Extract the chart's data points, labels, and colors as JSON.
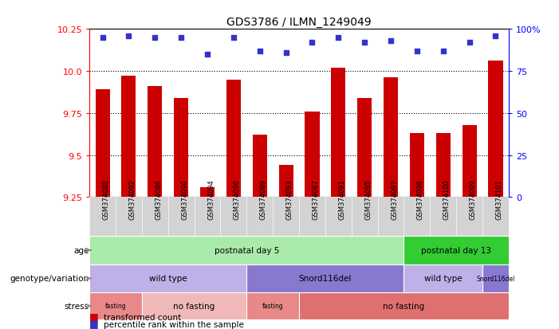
{
  "title": "GDS3786 / ILMN_1249049",
  "samples": [
    "GSM374088",
    "GSM374092",
    "GSM374086",
    "GSM374090",
    "GSM374094",
    "GSM374096",
    "GSM374089",
    "GSM374093",
    "GSM374087",
    "GSM374091",
    "GSM374095",
    "GSM374097",
    "GSM374098",
    "GSM374100",
    "GSM374099",
    "GSM374101"
  ],
  "bar_values": [
    9.89,
    9.97,
    9.91,
    9.84,
    9.31,
    9.95,
    9.62,
    9.44,
    9.76,
    10.02,
    9.84,
    9.96,
    9.63,
    9.63,
    9.68,
    10.06
  ],
  "dot_values": [
    95,
    96,
    95,
    95,
    85,
    95,
    87,
    86,
    92,
    95,
    92,
    93,
    87,
    87,
    92,
    96
  ],
  "ylim": [
    9.25,
    10.25
  ],
  "yticks_left": [
    9.25,
    9.5,
    9.75,
    10.0,
    10.25
  ],
  "yticks_right": [
    0,
    25,
    50,
    75,
    100
  ],
  "yticks_right_labels": [
    "0",
    "25",
    "50",
    "75",
    "100%"
  ],
  "grid_lines": [
    9.5,
    9.75,
    10.0
  ],
  "bar_color": "#cc0000",
  "dot_color": "#3333cc",
  "background_color": "#ffffff",
  "age_segments": [
    {
      "text": "postnatal day 5",
      "start": 0,
      "end": 12,
      "color": "#aaeaaa"
    },
    {
      "text": "postnatal day 13",
      "start": 12,
      "end": 16,
      "color": "#33cc33"
    }
  ],
  "genotype_segments": [
    {
      "text": "wild type",
      "start": 0,
      "end": 6,
      "color": "#c0b0e8"
    },
    {
      "text": "Snord116del",
      "start": 6,
      "end": 12,
      "color": "#8878d0"
    },
    {
      "text": "wild type",
      "start": 12,
      "end": 15,
      "color": "#c0b0e8"
    },
    {
      "text": "Snord116del",
      "start": 15,
      "end": 16,
      "color": "#8878d0"
    }
  ],
  "stress_segments": [
    {
      "text": "fasting",
      "start": 0,
      "end": 2,
      "color": "#e88888"
    },
    {
      "text": "no fasting",
      "start": 2,
      "end": 6,
      "color": "#f0b8b8"
    },
    {
      "text": "fasting",
      "start": 6,
      "end": 8,
      "color": "#e88888"
    },
    {
      "text": "no fasting",
      "start": 8,
      "end": 16,
      "color": "#e07070"
    }
  ],
  "row_labels": [
    "age",
    "genotype/variation",
    "stress"
  ],
  "legend_items": [
    {
      "color": "#cc0000",
      "label": "transformed count"
    },
    {
      "color": "#3333cc",
      "label": "percentile rank within the sample"
    }
  ]
}
